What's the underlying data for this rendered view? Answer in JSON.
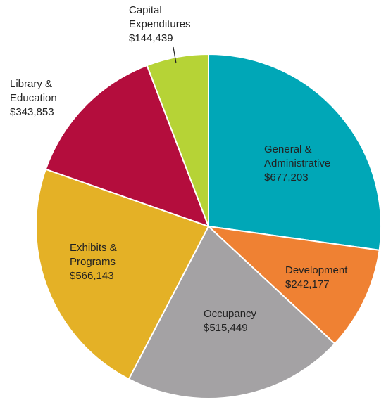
{
  "chart_data": {
    "type": "pie",
    "categories": [
      "General & Administrative",
      "Development",
      "Occupancy",
      "Exhibits & Programs",
      "Library & Education",
      "Capital Expenditures"
    ],
    "values": [
      677203,
      242177,
      515449,
      566143,
      343853,
      144439
    ],
    "value_labels": [
      "$677,203",
      "$242,177",
      "$515,449",
      "$566,143",
      "$343,853",
      "$144,439"
    ],
    "colors": [
      "#00a7b7",
      "#ef8133",
      "#a4a2a4",
      "#e4b126",
      "#b40d3d",
      "#b6d336"
    ]
  }
}
